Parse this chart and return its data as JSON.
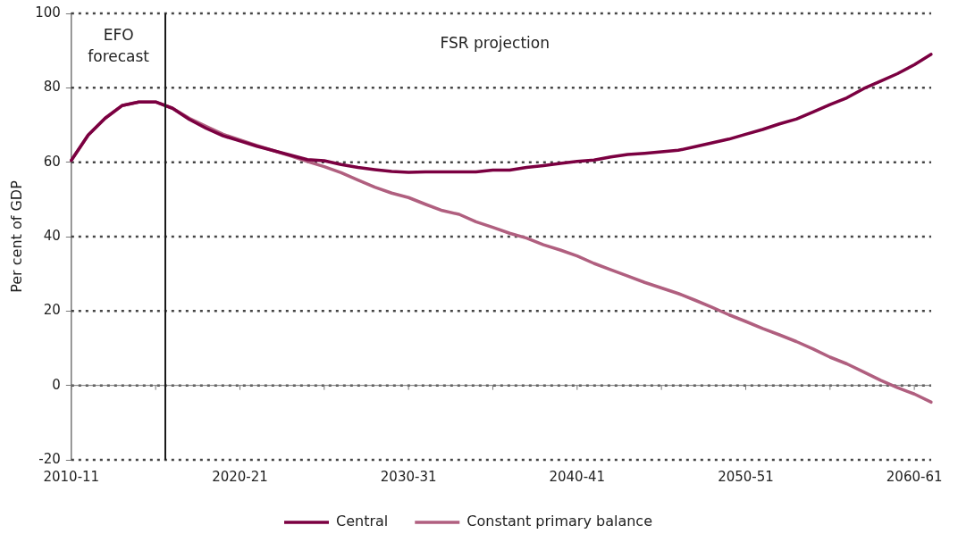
{
  "chart_data": {
    "type": "line",
    "ylabel": "Per cent of GDP",
    "categories": [
      "2010-11",
      null,
      null,
      null,
      null,
      null,
      null,
      null,
      null,
      null,
      "2020-21",
      null,
      null,
      null,
      null,
      null,
      null,
      null,
      null,
      null,
      "2030-31",
      null,
      null,
      null,
      null,
      null,
      null,
      null,
      null,
      null,
      "2040-41",
      null,
      null,
      null,
      null,
      null,
      null,
      null,
      null,
      null,
      "2050-51",
      null,
      null,
      null,
      null,
      null,
      null,
      null,
      null,
      null,
      "2060-61",
      null
    ],
    "series": [
      {
        "name": "Central",
        "color": "#7b0041",
        "values": [
          60.5,
          67.3,
          71.8,
          75.2,
          76.2,
          76.2,
          74.5,
          71.5,
          69.1,
          67.1,
          65.7,
          64.3,
          63.1,
          61.9,
          60.7,
          60.4,
          59.4,
          58.6,
          58.0,
          57.5,
          57.3,
          57.4,
          57.4,
          57.4,
          57.4,
          57.9,
          57.9,
          58.6,
          59.1,
          59.7,
          60.2,
          60.6,
          61.4,
          62.1,
          62.4,
          62.8,
          63.2,
          64.2,
          65.2,
          66.2,
          67.5,
          68.8,
          70.3,
          71.6,
          73.5,
          75.5,
          77.3,
          79.8,
          81.8,
          83.8,
          86.2,
          89.0
        ]
      },
      {
        "name": "Constant primary balance",
        "color": "#b05f7f",
        "values": [
          60.5,
          67.3,
          71.8,
          75.2,
          76.2,
          76.2,
          74.5,
          71.8,
          69.6,
          67.5,
          66.0,
          64.5,
          63.1,
          61.7,
          60.2,
          58.8,
          57.2,
          55.2,
          53.3,
          51.7,
          50.5,
          48.7,
          47.0,
          46.0,
          44.0,
          42.5,
          40.9,
          39.6,
          37.8,
          36.4,
          34.8,
          32.8,
          31.1,
          29.4,
          27.7,
          26.2,
          24.7,
          22.9,
          21.0,
          19.0,
          17.2,
          15.3,
          13.6,
          11.8,
          9.8,
          7.6,
          5.8,
          3.6,
          1.4,
          -0.6,
          -2.3,
          -4.5
        ]
      }
    ],
    "ylim": [
      -20,
      100
    ],
    "yticks": [
      -20,
      0,
      20,
      40,
      60,
      80,
      100
    ],
    "grid": "y",
    "legend": "bottom",
    "marker": "none",
    "line_style": "solid",
    "annotations": [
      "EFO forecast",
      "FSR projection"
    ]
  }
}
